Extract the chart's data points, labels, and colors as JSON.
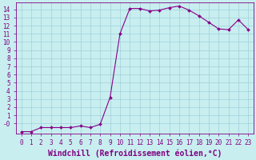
{
  "x": [
    0,
    1,
    2,
    3,
    4,
    5,
    6,
    7,
    8,
    9,
    10,
    11,
    12,
    13,
    14,
    15,
    16,
    17,
    18,
    19,
    20,
    21,
    22,
    23
  ],
  "y": [
    -1,
    -1,
    -0.5,
    -0.5,
    -0.5,
    -0.5,
    -0.3,
    -0.5,
    -0.1,
    3.2,
    11.0,
    14.1,
    14.1,
    13.8,
    13.9,
    14.2,
    14.4,
    13.9,
    13.2,
    12.4,
    11.6,
    11.5,
    12.7,
    11.5
  ],
  "line_color": "#880088",
  "marker": "D",
  "marker_size": 2.0,
  "bg_color": "#c8eef0",
  "grid_color": "#a0d0d8",
  "xlabel": "Windchill (Refroidissement éolien,°C)",
  "ylim_min": -1.2,
  "ylim_max": 14.8,
  "xlim_min": -0.5,
  "xlim_max": 23.5,
  "yticks": [
    1,
    2,
    3,
    4,
    5,
    6,
    7,
    8,
    9,
    10,
    11,
    12,
    13,
    14
  ],
  "ytick_labels": [
    "1",
    "2",
    "3",
    "4",
    "5",
    "6",
    "7",
    "8",
    "9",
    "10",
    "11",
    "12",
    "13",
    "14"
  ],
  "ytick_bottom": -0.0,
  "ytick_bottom_label": "-0",
  "xticks": [
    0,
    1,
    2,
    3,
    4,
    5,
    6,
    7,
    8,
    9,
    10,
    11,
    12,
    13,
    14,
    15,
    16,
    17,
    18,
    19,
    20,
    21,
    22,
    23
  ],
  "font_color": "#800080",
  "tick_fontsize": 5.5,
  "label_fontsize": 7.0,
  "linewidth": 0.8
}
